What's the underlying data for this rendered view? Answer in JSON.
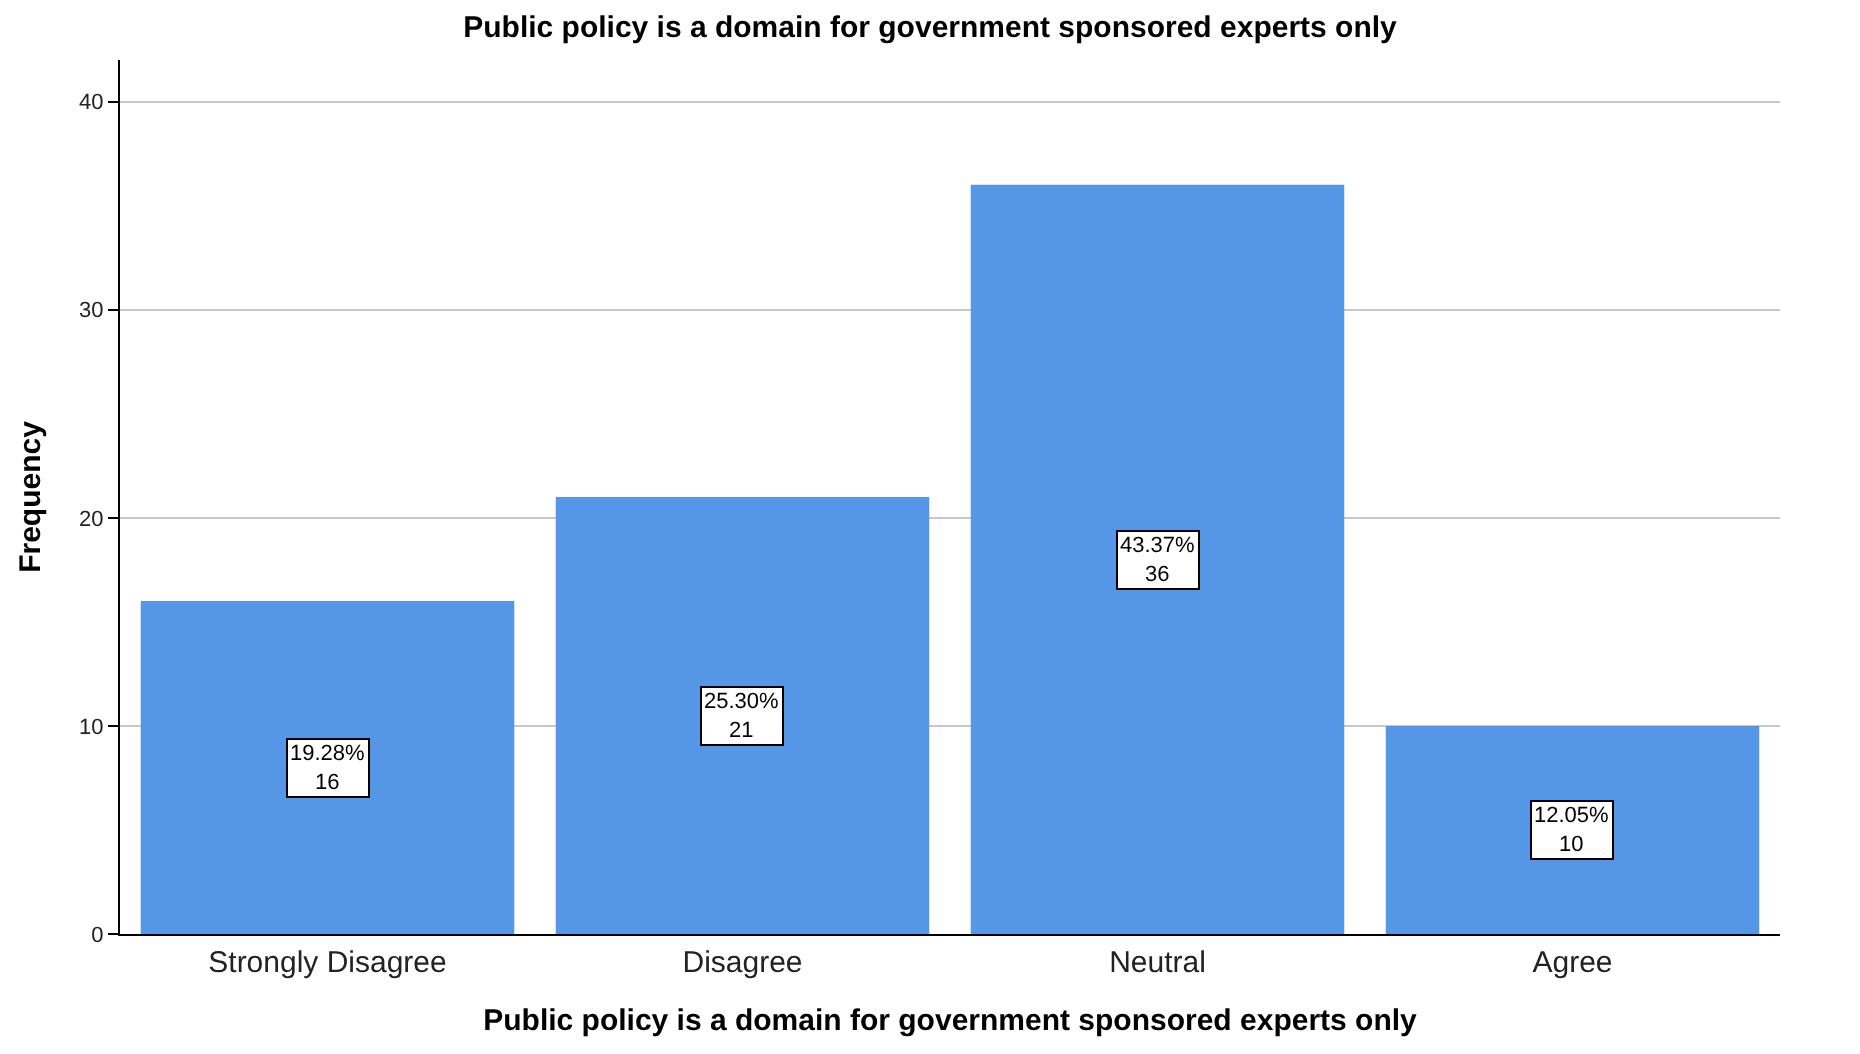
{
  "chart_data": {
    "type": "bar",
    "title": "Public policy is a domain for government sponsored experts only",
    "xlabel": "Public policy is a domain for government sponsored experts only",
    "ylabel": "Frequency",
    "categories": [
      "Strongly Disagree",
      "Disagree",
      "Neutral",
      "Agree"
    ],
    "values": [
      16,
      21,
      36,
      10
    ],
    "color": "#5596e6",
    "value_labels": [
      "19.28%\n16",
      "25.30%\n21",
      "43.37%\n36",
      "12.05%\n10"
    ],
    "ylim": [
      0,
      42
    ],
    "yticks": [
      0,
      10,
      20,
      30,
      40
    ],
    "grid": "y",
    "legend": false
  }
}
